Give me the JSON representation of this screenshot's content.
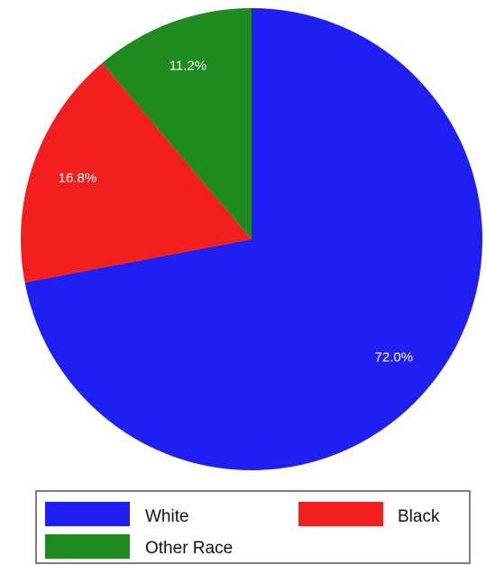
{
  "chart_data": {
    "type": "pie",
    "slices": [
      {
        "name": "White",
        "value": 72.0,
        "label": "72.0%",
        "color": "#1f1ff2"
      },
      {
        "name": "Black",
        "value": 16.8,
        "label": "16.8%",
        "color": "#f21f1f"
      },
      {
        "name": "Other Race",
        "value": 11.2,
        "label": "11.2%",
        "color": "#1f8a1f"
      }
    ],
    "start_angle": "12 o'clock",
    "direction": "clockwise",
    "legend_position": "bottom"
  }
}
